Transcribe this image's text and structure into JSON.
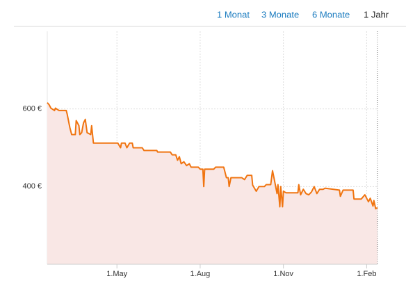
{
  "range_tabs": {
    "options": [
      "1 Monat",
      "3 Monate",
      "6 Monate",
      "1 Jahr"
    ],
    "selected": 3
  },
  "chart_data": {
    "type": "area",
    "x": [
      0,
      2,
      4,
      8,
      9,
      13,
      21,
      22,
      25,
      27,
      31,
      32,
      35,
      36,
      38,
      40,
      42,
      44,
      48,
      49,
      51,
      67,
      78,
      81,
      82,
      86,
      88,
      91,
      94,
      95,
      105,
      107,
      121,
      122,
      136,
      138,
      142,
      144,
      146,
      148,
      151,
      154,
      157,
      159,
      167,
      169,
      172,
      173,
      174,
      184,
      186,
      195,
      198,
      200,
      201,
      203,
      215,
      218,
      221,
      226,
      227,
      231,
      234,
      240,
      242,
      247,
      249,
      251,
      254,
      255,
      257,
      258,
      260,
      261,
      264,
      277,
      278,
      280,
      283,
      286,
      289,
      292,
      295,
      298,
      301,
      305,
      307,
      323,
      324,
      327,
      338,
      339,
      347,
      351,
      355,
      357,
      360,
      361,
      363,
      365
    ],
    "values": [
      616,
      611,
      602,
      596,
      602,
      596,
      596,
      587,
      552,
      534,
      534,
      570,
      557,
      534,
      539,
      564,
      573,
      539,
      534,
      557,
      512,
      512,
      512,
      500,
      512,
      512,
      500,
      512,
      512,
      500,
      500,
      493,
      493,
      489,
      489,
      482,
      482,
      468,
      477,
      459,
      464,
      454,
      459,
      450,
      450,
      445,
      445,
      400,
      445,
      445,
      450,
      450,
      423,
      423,
      400,
      423,
      423,
      418,
      429,
      429,
      404,
      388,
      400,
      400,
      405,
      405,
      441,
      418,
      382,
      405,
      348,
      400,
      348,
      388,
      384,
      384,
      405,
      379,
      393,
      382,
      379,
      386,
      400,
      382,
      393,
      393,
      396,
      391,
      375,
      391,
      391,
      368,
      368,
      379,
      361,
      370,
      350,
      364,
      343,
      346
    ],
    "color": "#f07410",
    "fill_color": "#f9e7e5",
    "xlim": [
      0,
      365
    ],
    "xticks": [
      {
        "value": 77,
        "label": "1.May"
      },
      {
        "value": 169,
        "label": "1.Aug"
      },
      {
        "value": 261,
        "label": "1.Nov"
      },
      {
        "value": 353,
        "label": "1.Feb"
      }
    ],
    "ylim": [
      200,
      800
    ],
    "yticks": [
      {
        "value": 400,
        "label": "400 €"
      },
      {
        "value": 600,
        "label": "600 €"
      }
    ],
    "grid": true
  }
}
